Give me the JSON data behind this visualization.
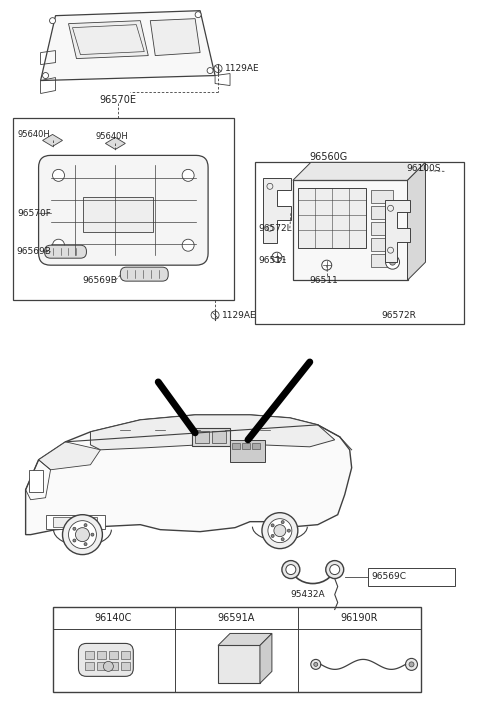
{
  "bg_color": "#ffffff",
  "line_color": "#404040",
  "text_color": "#222222",
  "labels": {
    "1129AE_top": "1129AE",
    "96570E": "96570E",
    "95640H_left": "95640H",
    "95640H_right": "95640H",
    "96570F": "96570F",
    "96569B_top": "96569B",
    "96569B_bot": "96569B",
    "1129AE_bot": "1129AE",
    "96560G": "96560G",
    "96100S": "96100S",
    "96572L": "96572L",
    "96511_top": "96511",
    "96511_bot": "96511",
    "96572R": "96572R",
    "95432A": "95432A",
    "96569C": "96569C",
    "96140C": "96140C",
    "96591A": "96591A",
    "96190R": "96190R"
  }
}
